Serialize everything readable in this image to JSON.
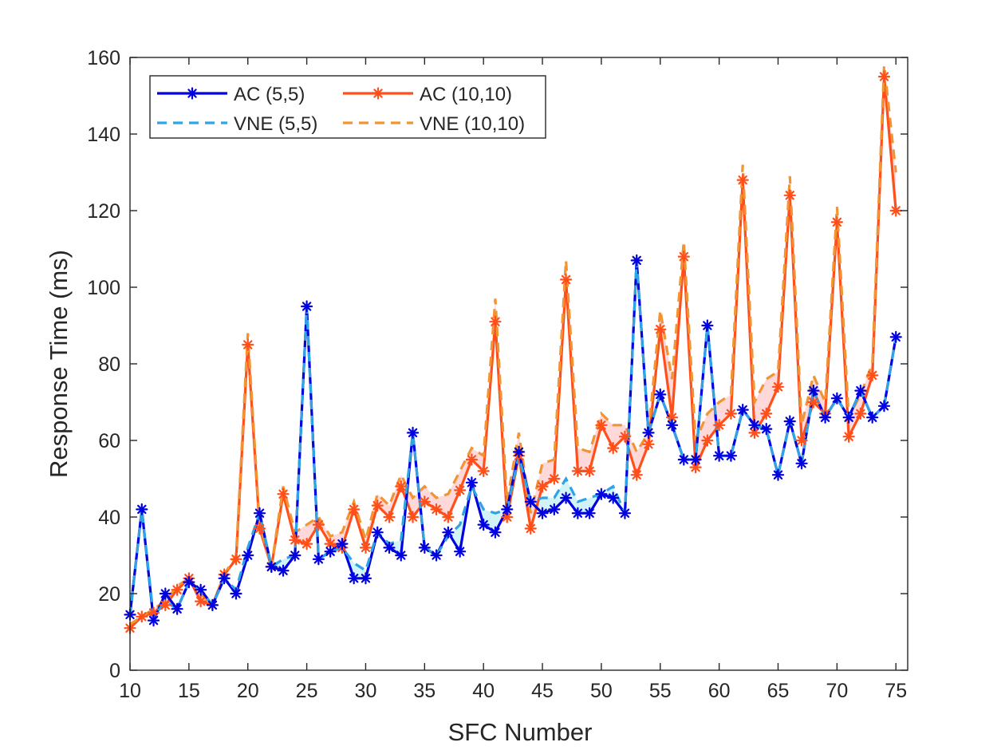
{
  "chart_data": {
    "type": "line",
    "xlabel": "SFC Number",
    "ylabel": "Response Time (ms)",
    "xlim": [
      10,
      76
    ],
    "ylim": [
      0,
      160
    ],
    "xticks": [
      10,
      15,
      20,
      25,
      30,
      35,
      40,
      45,
      50,
      55,
      60,
      65,
      70,
      75
    ],
    "yticks": [
      0,
      20,
      40,
      60,
      80,
      100,
      120,
      140,
      160
    ],
    "legend_placement": "top-left",
    "grid": false,
    "x": [
      10,
      11,
      12,
      13,
      14,
      15,
      16,
      17,
      18,
      19,
      20,
      21,
      22,
      23,
      24,
      25,
      26,
      27,
      28,
      29,
      30,
      31,
      32,
      33,
      34,
      35,
      36,
      37,
      38,
      39,
      40,
      41,
      42,
      43,
      44,
      45,
      46,
      47,
      48,
      49,
      50,
      51,
      52,
      53,
      54,
      55,
      56,
      57,
      58,
      59,
      60,
      61,
      62,
      63,
      64,
      65,
      66,
      67,
      68,
      69,
      70,
      71,
      72,
      73,
      74,
      75
    ],
    "series": [
      {
        "name": "AC (5,5)",
        "color": "#0000e0",
        "style": "solid-star",
        "values": [
          14.5,
          42,
          13,
          20,
          16,
          23,
          21,
          17,
          24,
          20,
          30,
          41,
          27,
          26,
          30,
          95,
          29,
          31,
          33,
          24,
          24,
          36,
          32,
          30,
          62,
          32,
          30,
          36,
          31,
          49,
          38,
          36,
          42,
          57,
          44,
          41,
          42,
          45,
          41,
          41,
          46,
          45,
          41,
          107,
          62,
          72,
          64,
          55,
          55,
          90,
          56,
          56,
          68,
          64,
          63,
          51,
          65,
          54,
          73,
          66,
          71,
          66,
          73,
          66,
          69,
          87
        ]
      },
      {
        "name": "AC (10,10)",
        "color": "#ff4f1a",
        "style": "solid-star",
        "values": [
          11,
          14,
          15,
          17,
          21,
          24,
          18,
          17,
          25,
          29,
          85,
          37,
          27,
          46,
          34,
          33,
          38,
          33,
          32,
          42,
          32,
          43,
          40,
          48,
          40,
          44,
          42,
          40,
          47,
          55,
          52,
          91,
          40,
          56,
          37,
          48,
          50,
          102,
          52,
          52,
          64,
          58,
          61,
          51,
          59,
          89,
          66,
          108,
          53,
          60,
          64,
          67,
          128,
          62,
          67,
          74,
          124,
          60,
          70,
          67,
          117,
          61,
          67,
          77,
          155,
          120
        ]
      },
      {
        "name": "VNE (5,5)",
        "color": "#2ea3e6",
        "style": "dashed",
        "values": [
          14,
          42,
          14,
          18,
          16,
          23,
          21,
          17,
          24,
          21,
          32,
          41,
          27,
          29,
          30,
          95,
          29,
          31,
          32,
          28,
          26,
          36,
          33,
          34,
          62,
          32,
          30,
          35,
          38,
          48,
          42,
          41,
          42,
          56,
          44,
          45,
          45,
          50,
          44,
          45,
          46,
          48,
          41,
          107,
          62,
          72,
          64,
          55,
          55,
          90,
          56,
          56,
          68,
          64,
          63,
          51,
          65,
          54,
          73,
          66,
          71,
          66,
          73,
          66,
          69,
          87
        ]
      },
      {
        "name": "VNE (10,10)",
        "color": "#f29433",
        "style": "dashed",
        "values": [
          12,
          14,
          16,
          18,
          22,
          24,
          20,
          17,
          25,
          30,
          88,
          38,
          27,
          48,
          36,
          38,
          40,
          35,
          36,
          44,
          34,
          46,
          43,
          51,
          45,
          48,
          45,
          46,
          52,
          58,
          56,
          97,
          44,
          62,
          41,
          54,
          55,
          107,
          58,
          57,
          67,
          64,
          64,
          57,
          62,
          94,
          76,
          112,
          60,
          67,
          70,
          72,
          132,
          70,
          76,
          78,
          129,
          64,
          77,
          70,
          121,
          66,
          72,
          80,
          158,
          130
        ]
      }
    ]
  }
}
